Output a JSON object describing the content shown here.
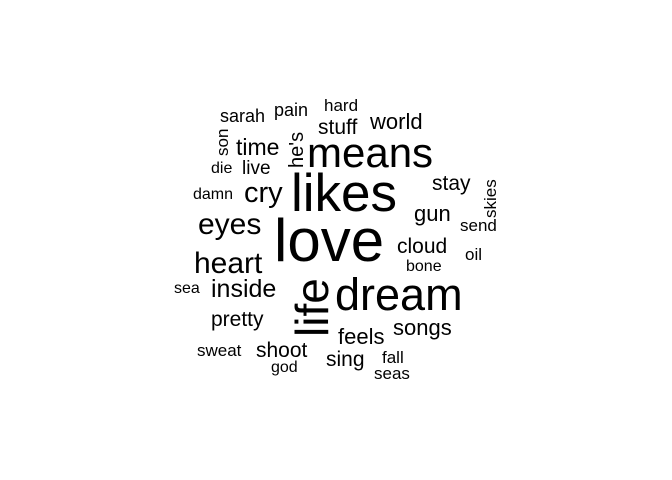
{
  "cloud": {
    "text_color": "#000000",
    "background": "#ffffff",
    "words": {
      "love": "love",
      "likes": "likes",
      "dream": "dream",
      "means": "means",
      "life": "life",
      "heart": "heart",
      "eyes": "eyes",
      "cry": "cry",
      "inside": "inside",
      "time": "time",
      "stuff": "stuff",
      "world": "world",
      "songs": "songs",
      "feels": "feels",
      "sing": "sing",
      "shoot": "shoot",
      "pretty": "pretty",
      "cloud": "cloud",
      "stay": "stay",
      "gun": "gun",
      "live": "live",
      "sarah": "sarah",
      "pain": "pain",
      "hard": "hard",
      "he_s": "he's",
      "son": "son",
      "die": "die",
      "damn": "damn",
      "sea": "sea",
      "sweat": "sweat",
      "god": "god",
      "fall": "fall",
      "seas": "seas",
      "bone": "bone",
      "oil": "oil",
      "send": "send",
      "skies": "skies"
    }
  }
}
